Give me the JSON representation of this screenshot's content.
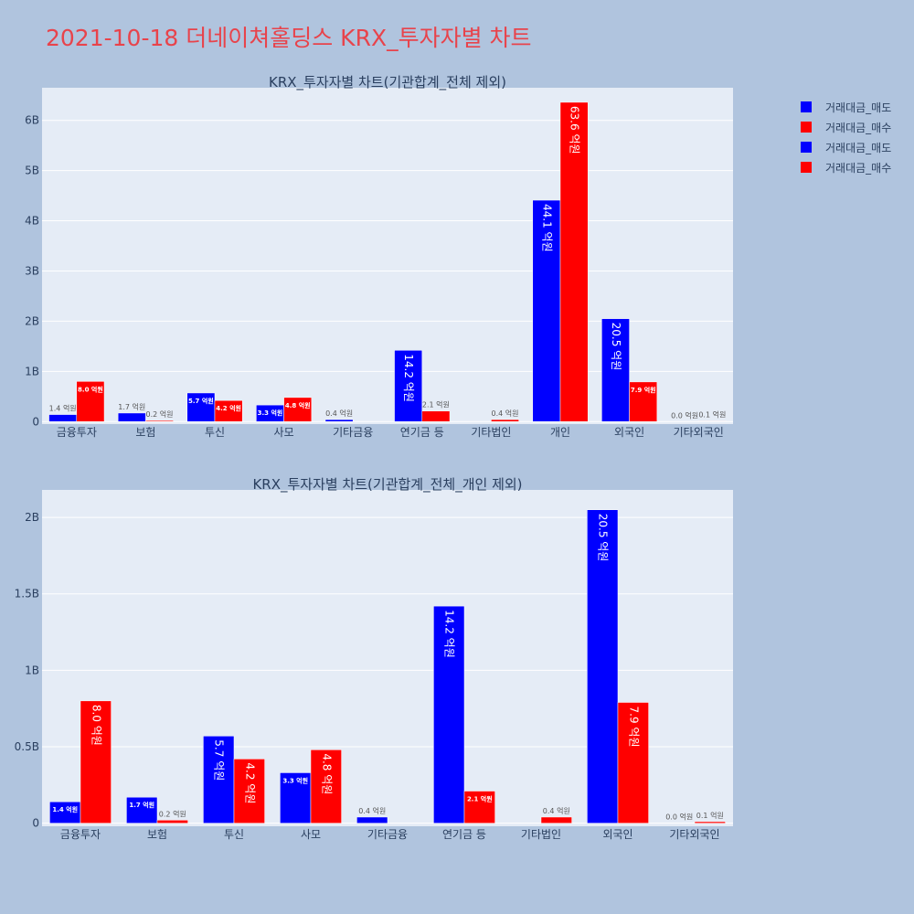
{
  "title": "2021-10-18 더네이쳐홀딩스 KRX_투자자별 차트",
  "legend": [
    {
      "label": "거래대금_매도",
      "color": "#0000ff"
    },
    {
      "label": "거래대금_매수",
      "color": "#ff0000"
    },
    {
      "label": "거래대금_매도",
      "color": "#0000ff"
    },
    {
      "label": "거래대금_매수",
      "color": "#ff0000"
    }
  ],
  "chart_data": [
    {
      "type": "bar",
      "title": "KRX_투자자별 차트(기관합계_전체 제외)",
      "categories": [
        "금융투자",
        "보험",
        "투신",
        "사모",
        "기타금융",
        "연기금 등",
        "기타법인",
        "개인",
        "외국인",
        "기타외국인"
      ],
      "ylim": [
        -50000000,
        6650000000
      ],
      "yticks": [
        0,
        1000000000,
        2000000000,
        3000000000,
        4000000000,
        5000000000,
        6000000000
      ],
      "ytick_labels": [
        "0",
        "1B",
        "2B",
        "3B",
        "4B",
        "5B",
        "6B"
      ],
      "grid": true,
      "series": [
        {
          "name": "거래대금_매도",
          "color": "#0000ff",
          "values": [
            140000000,
            170000000,
            570000000,
            330000000,
            40000000,
            1420000000,
            0,
            4410000000,
            2050000000,
            0
          ],
          "labels": [
            "1.4 억원",
            "1.7 억원",
            "5.7 억원",
            "3.3 억원",
            "0.4 억원",
            "14.2 억원",
            "",
            "44.1 억원",
            "20.5 억원",
            "0.0 억원"
          ]
        },
        {
          "name": "거래대금_매수",
          "color": "#ff0000",
          "values": [
            800000000,
            20000000,
            420000000,
            480000000,
            0,
            210000000,
            40000000,
            6360000000,
            790000000,
            10000000
          ],
          "labels": [
            "8.0 억원",
            "0.2 억원",
            "4.2 억원",
            "4.8 억원",
            "",
            "2.1 억원",
            "0.4 억원",
            "63.6 억원",
            "7.9 억원",
            "0.1 억원"
          ]
        }
      ]
    },
    {
      "type": "bar",
      "title": "KRX_투자자별 차트(기관합계_전체_개인 제외)",
      "categories": [
        "금융투자",
        "보험",
        "투신",
        "사모",
        "기타금융",
        "연기금 등",
        "기타법인",
        "외국인",
        "기타외국인"
      ],
      "ylim": [
        -20000000,
        2180000000
      ],
      "yticks": [
        0,
        500000000,
        1000000000,
        1500000000,
        2000000000
      ],
      "ytick_labels": [
        "0",
        "0.5B",
        "1B",
        "1.5B",
        "2B"
      ],
      "grid": true,
      "series": [
        {
          "name": "거래대금_매도",
          "color": "#0000ff",
          "values": [
            140000000,
            170000000,
            570000000,
            330000000,
            40000000,
            1420000000,
            0,
            2050000000,
            0
          ],
          "labels": [
            "1.4 억원",
            "1.7 억원",
            "5.7 억원",
            "3.3 억원",
            "0.4 억원",
            "14.2 억원",
            "",
            "20.5 억원",
            "0.0 억원"
          ]
        },
        {
          "name": "거래대금_매수",
          "color": "#ff0000",
          "values": [
            800000000,
            20000000,
            420000000,
            480000000,
            0,
            210000000,
            40000000,
            790000000,
            10000000
          ],
          "labels": [
            "8.0 억원",
            "0.2 억원",
            "4.2 억원",
            "4.8 억원",
            "",
            "2.1 억원",
            "0.4 억원",
            "7.9 억원",
            "0.1 억원"
          ]
        }
      ]
    }
  ]
}
